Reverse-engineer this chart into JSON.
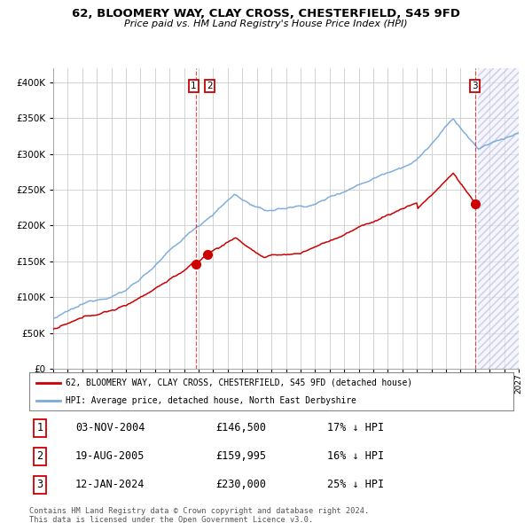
{
  "title": "62, BLOOMERY WAY, CLAY CROSS, CHESTERFIELD, S45 9FD",
  "subtitle": "Price paid vs. HM Land Registry's House Price Index (HPI)",
  "legend_red": "62, BLOOMERY WAY, CLAY CROSS, CHESTERFIELD, S45 9FD (detached house)",
  "legend_blue": "HPI: Average price, detached house, North East Derbyshire",
  "transactions": [
    {
      "label": "1",
      "date": "03-NOV-2004",
      "price": 146500,
      "pct": "17%",
      "dir": "↓"
    },
    {
      "label": "2",
      "date": "19-AUG-2005",
      "price": 159995,
      "pct": "16%",
      "dir": "↓"
    },
    {
      "label": "3",
      "date": "12-JAN-2024",
      "price": 230000,
      "pct": "25%",
      "dir": "↓"
    }
  ],
  "footnote1": "Contains HM Land Registry data © Crown copyright and database right 2024.",
  "footnote2": "This data is licensed under the Open Government Licence v3.0.",
  "ylim": [
    0,
    420000
  ],
  "xlim_start": 1995,
  "xlim_end": 2027,
  "background_color": "#ffffff",
  "grid_color": "#cccccc",
  "red_color": "#cc0000",
  "blue_color": "#7aabdc",
  "hatch_start": 2024.2
}
